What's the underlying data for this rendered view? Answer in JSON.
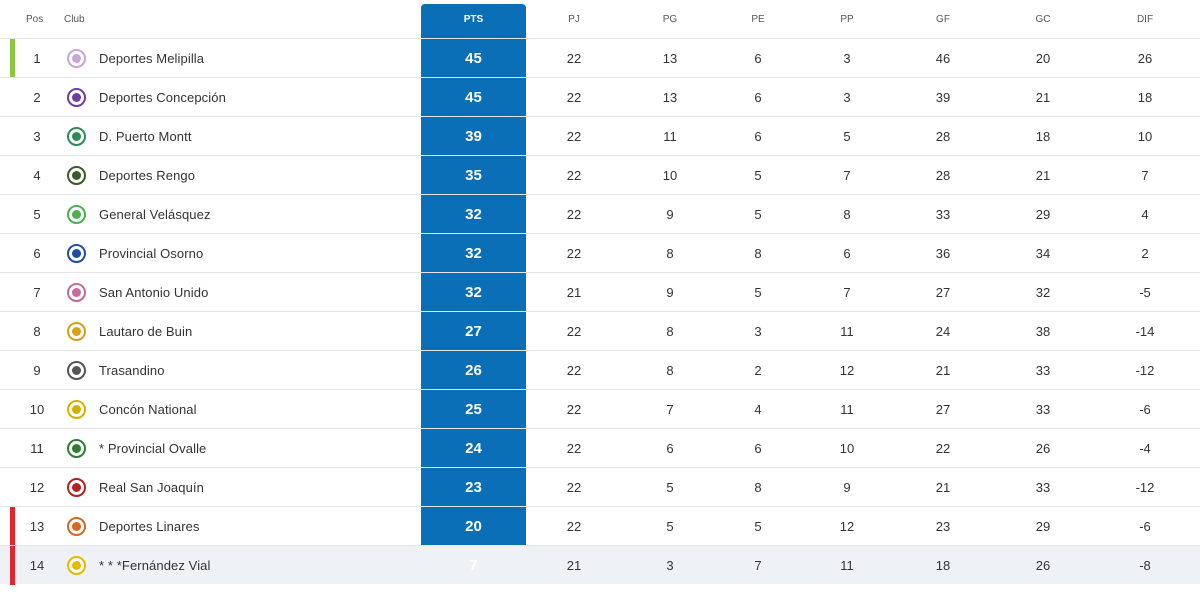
{
  "headers": {
    "pos": "Pos",
    "club": "Club",
    "pts": "PTS",
    "pj": "PJ",
    "pg": "PG",
    "pe": "PE",
    "pp": "PP",
    "gf": "GF",
    "gc": "GC",
    "dif": "DIF"
  },
  "colors": {
    "pts_column": "#0b6fb8",
    "promotion_bar": "#8dc63f",
    "relegation_bar": "#e0262e"
  },
  "rows": [
    {
      "pos": "1",
      "club": "Deportes Melipilla",
      "pts": "45",
      "pj": "22",
      "pg": "13",
      "pe": "6",
      "pp": "3",
      "gf": "46",
      "gc": "20",
      "dif": "26",
      "marker": "promotion",
      "crest_color": "#c9a6d8"
    },
    {
      "pos": "2",
      "club": "Deportes Concepción",
      "pts": "45",
      "pj": "22",
      "pg": "13",
      "pe": "6",
      "pp": "3",
      "gf": "39",
      "gc": "21",
      "dif": "18",
      "marker": "",
      "crest_color": "#6b3fa0"
    },
    {
      "pos": "3",
      "club": "D. Puerto Montt",
      "pts": "39",
      "pj": "22",
      "pg": "11",
      "pe": "6",
      "pp": "5",
      "gf": "28",
      "gc": "18",
      "dif": "10",
      "marker": "",
      "crest_color": "#2e8b57"
    },
    {
      "pos": "4",
      "club": "Deportes Rengo",
      "pts": "35",
      "pj": "22",
      "pg": "10",
      "pe": "5",
      "pp": "7",
      "gf": "28",
      "gc": "21",
      "dif": "7",
      "marker": "",
      "crest_color": "#3a5a2a"
    },
    {
      "pos": "5",
      "club": "General Velásquez",
      "pts": "32",
      "pj": "22",
      "pg": "9",
      "pe": "5",
      "pp": "8",
      "gf": "33",
      "gc": "29",
      "dif": "4",
      "marker": "",
      "crest_color": "#4caf50"
    },
    {
      "pos": "6",
      "club": "Provincial Osorno",
      "pts": "32",
      "pj": "22",
      "pg": "8",
      "pe": "8",
      "pp": "6",
      "gf": "36",
      "gc": "34",
      "dif": "2",
      "marker": "",
      "crest_color": "#1f4ea3"
    },
    {
      "pos": "7",
      "club": "San Antonio Unido",
      "pts": "32",
      "pj": "21",
      "pg": "9",
      "pe": "5",
      "pp": "7",
      "gf": "27",
      "gc": "32",
      "dif": "-5",
      "marker": "",
      "crest_color": "#c46a9a"
    },
    {
      "pos": "8",
      "club": "Lautaro de Buin",
      "pts": "27",
      "pj": "22",
      "pg": "8",
      "pe": "3",
      "pp": "11",
      "gf": "24",
      "gc": "38",
      "dif": "-14",
      "marker": "",
      "crest_color": "#d4a017"
    },
    {
      "pos": "9",
      "club": "Trasandino",
      "pts": "26",
      "pj": "22",
      "pg": "8",
      "pe": "2",
      "pp": "12",
      "gf": "21",
      "gc": "33",
      "dif": "-12",
      "marker": "",
      "crest_color": "#555555"
    },
    {
      "pos": "10",
      "club": "Concón National",
      "pts": "25",
      "pj": "22",
      "pg": "7",
      "pe": "4",
      "pp": "11",
      "gf": "27",
      "gc": "33",
      "dif": "-6",
      "marker": "",
      "crest_color": "#d4b000"
    },
    {
      "pos": "11",
      "club": "* Provincial Ovalle",
      "pts": "24",
      "pj": "22",
      "pg": "6",
      "pe": "6",
      "pp": "10",
      "gf": "22",
      "gc": "26",
      "dif": "-4",
      "marker": "",
      "crest_color": "#2e7d32"
    },
    {
      "pos": "12",
      "club": "Real San Joaquín",
      "pts": "23",
      "pj": "22",
      "pg": "5",
      "pe": "8",
      "pp": "9",
      "gf": "21",
      "gc": "33",
      "dif": "-12",
      "marker": "",
      "crest_color": "#b22222"
    },
    {
      "pos": "13",
      "club": "Deportes Linares",
      "pts": "20",
      "pj": "22",
      "pg": "5",
      "pe": "5",
      "pp": "12",
      "gf": "23",
      "gc": "29",
      "dif": "-6",
      "marker": "relegation",
      "crest_color": "#d2691e"
    },
    {
      "pos": "14",
      "club": "* * *Fernández Vial",
      "pts": "7",
      "pj": "21",
      "pg": "3",
      "pe": "7",
      "pp": "11",
      "gf": "18",
      "gc": "26",
      "dif": "-8",
      "marker": "relegation",
      "crest_color": "#e6b800"
    }
  ]
}
